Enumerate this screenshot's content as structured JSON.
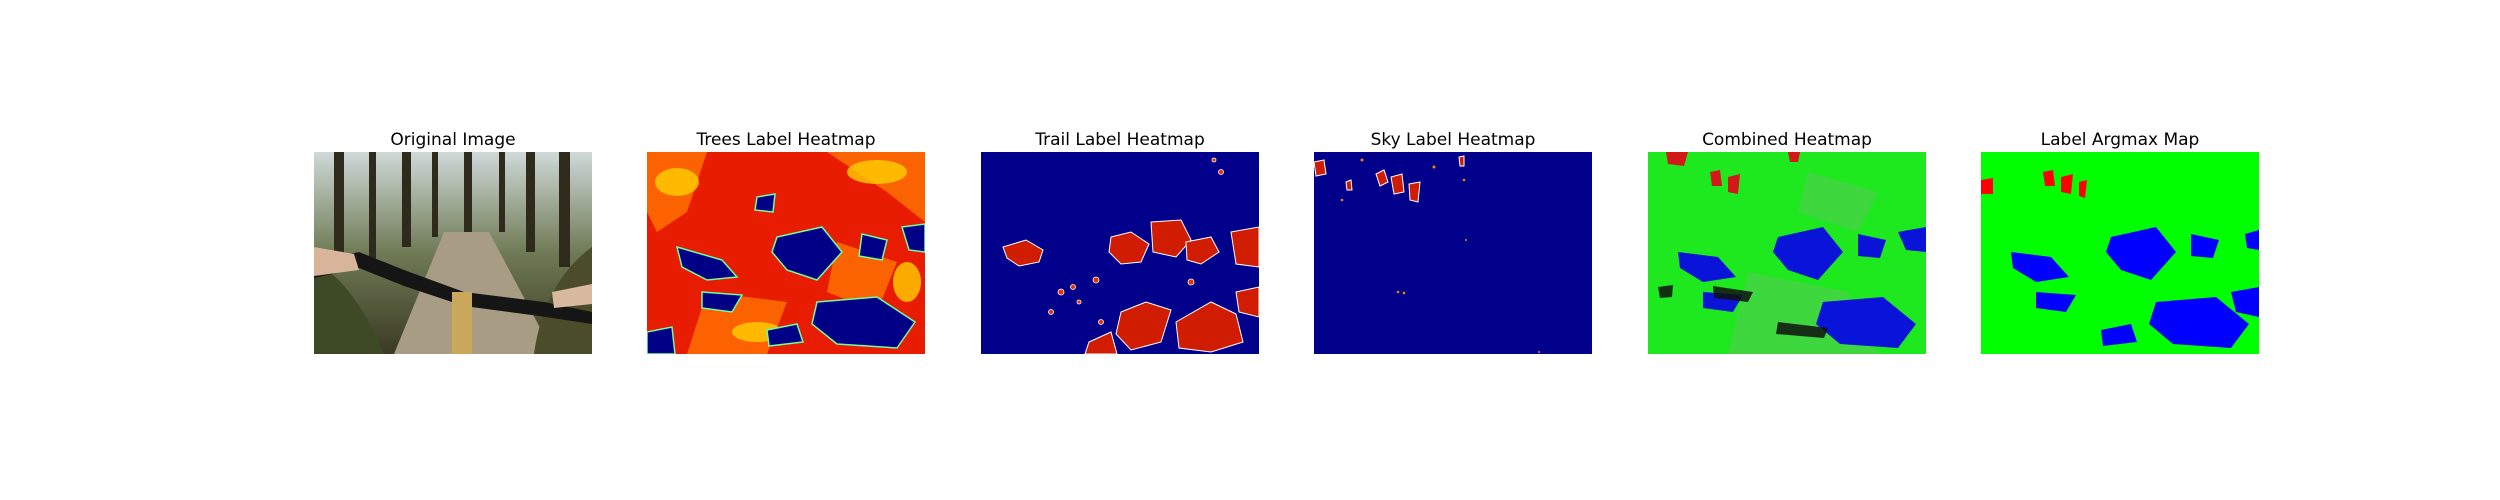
{
  "chart_data": [
    {
      "type": "image",
      "title": "Original Image"
    },
    {
      "type": "heatmap",
      "title": "Trees Label Heatmap",
      "colormap": "jet"
    },
    {
      "type": "heatmap",
      "title": "Trail Label Heatmap",
      "colormap": "jet"
    },
    {
      "type": "heatmap",
      "title": "Sky Label Heatmap",
      "colormap": "jet"
    },
    {
      "type": "heatmap",
      "title": "Combined Heatmap",
      "colormap": "rgb"
    },
    {
      "type": "heatmap",
      "title": "Label Argmax Map",
      "colormap": "rgb"
    }
  ],
  "colors": {
    "jet_low": "#00008b",
    "jet_high": "#e01800",
    "jet_mid": "#ff6a00",
    "trees": "#00ff00",
    "trail": "#0000ff",
    "sky": "#ff0000"
  }
}
